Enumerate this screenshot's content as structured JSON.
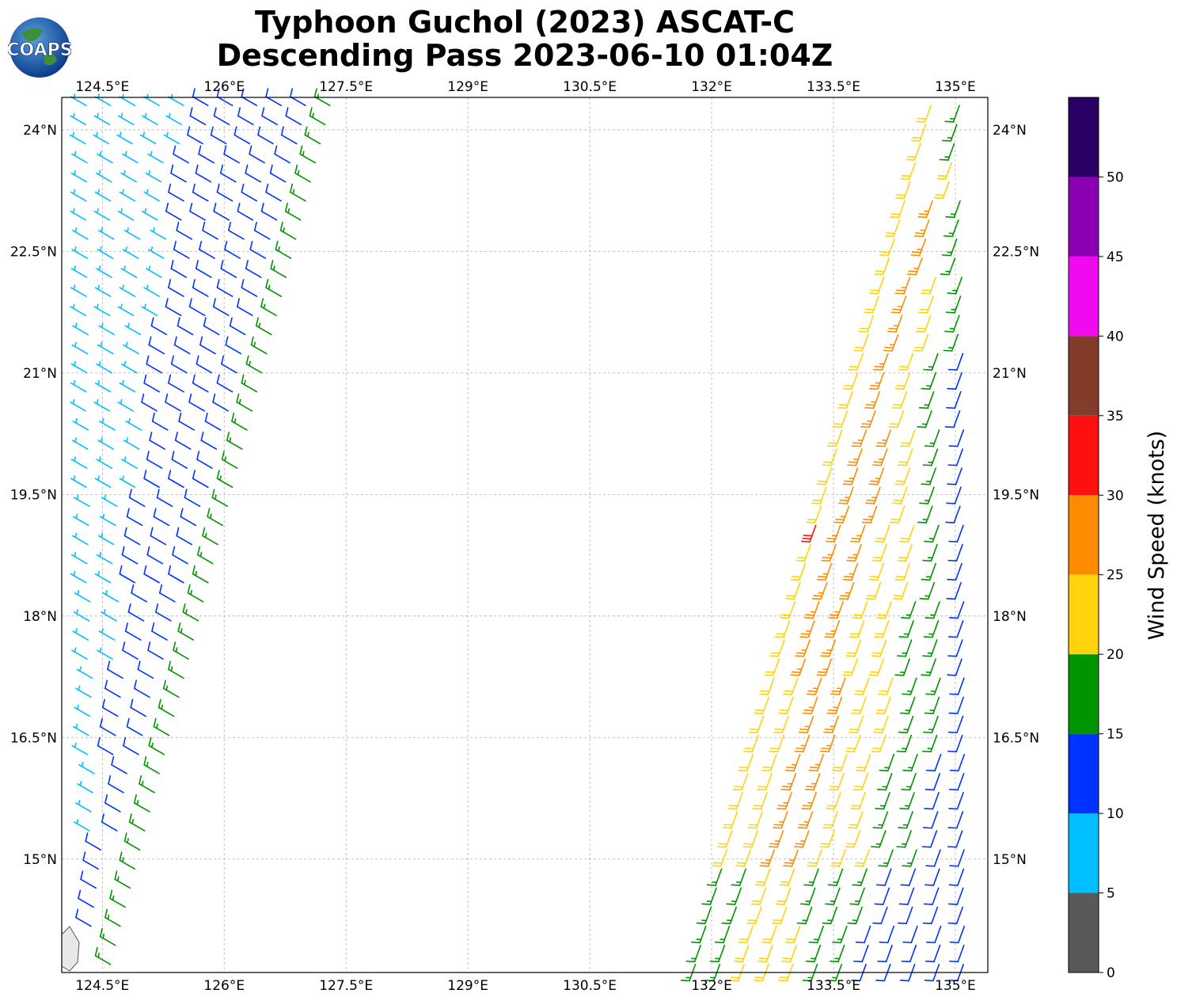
{
  "title": {
    "line1": "Typhoon Guchol (2023) ASCAT-C",
    "line2": "Descending Pass 2023-06-10 01:04Z"
  },
  "logo": {
    "text": "COAPS"
  },
  "map": {
    "lon_range": [
      124.0,
      135.4
    ],
    "lat_range": [
      13.6,
      24.4
    ],
    "lon_ticks": [
      "124.5°E",
      "126°E",
      "127.5°E",
      "129°E",
      "130.5°E",
      "132°E",
      "133.5°E",
      "135°E"
    ],
    "lon_tick_values": [
      124.5,
      126.0,
      127.5,
      129.0,
      130.5,
      132.0,
      133.5,
      135.0
    ],
    "lat_ticks": [
      "24°N",
      "22.5°N",
      "21°N",
      "19.5°N",
      "18°N",
      "16.5°N",
      "15°N"
    ],
    "lat_tick_values": [
      24.0,
      22.5,
      21.0,
      19.5,
      18.0,
      16.5,
      15.0
    ],
    "grid": true
  },
  "colorbar": {
    "label": "Wind Speed (knots)",
    "ticks": [
      "0",
      "5",
      "10",
      "15",
      "20",
      "25",
      "30",
      "35",
      "40",
      "45",
      "50"
    ],
    "bins": [
      {
        "min": 0,
        "max": 5,
        "color": "#595959"
      },
      {
        "min": 5,
        "max": 10,
        "color": "#00bfff"
      },
      {
        "min": 10,
        "max": 15,
        "color": "#0033ff"
      },
      {
        "min": 15,
        "max": 20,
        "color": "#009400"
      },
      {
        "min": 20,
        "max": 25,
        "color": "#ffd30d"
      },
      {
        "min": 25,
        "max": 30,
        "color": "#ff8c00"
      },
      {
        "min": 30,
        "max": 35,
        "color": "#ff1010"
      },
      {
        "min": 35,
        "max": 40,
        "color": "#833c29"
      },
      {
        "min": 40,
        "max": 45,
        "color": "#f00af0"
      },
      {
        "min": 45,
        "max": 50,
        "color": "#8c00b4"
      },
      {
        "min": 50,
        "max": 55,
        "color": "#2a0064"
      }
    ]
  },
  "swaths": [
    {
      "name": "west-swath",
      "top_edge_lon": [
        124.0,
        127.3
      ],
      "bottom_edge_lon": [
        124.0,
        124.6
      ],
      "speed_profile": [
        {
          "frac": 0.0,
          "speed": 8
        },
        {
          "frac": 0.45,
          "speed": 8
        },
        {
          "frac": 0.55,
          "speed": 12
        },
        {
          "frac": 0.88,
          "speed": 12
        },
        {
          "frac": 0.95,
          "speed": 16
        },
        {
          "frac": 1.0,
          "speed": 16
        }
      ],
      "direction_deg": 300
    },
    {
      "name": "east-swath",
      "top_edge_lon": [
        134.7,
        135.4
      ],
      "bottom_edge_lon": [
        131.8,
        135.4
      ],
      "speed_profile": [
        {
          "frac": 0.0,
          "speed": 22
        },
        {
          "frac": 0.25,
          "speed": 26
        },
        {
          "frac": 0.45,
          "speed": 22
        },
        {
          "frac": 0.7,
          "speed": 18
        },
        {
          "frac": 0.9,
          "speed": 12
        },
        {
          "frac": 1.0,
          "speed": 12
        }
      ],
      "direction_deg": 200
    }
  ]
}
